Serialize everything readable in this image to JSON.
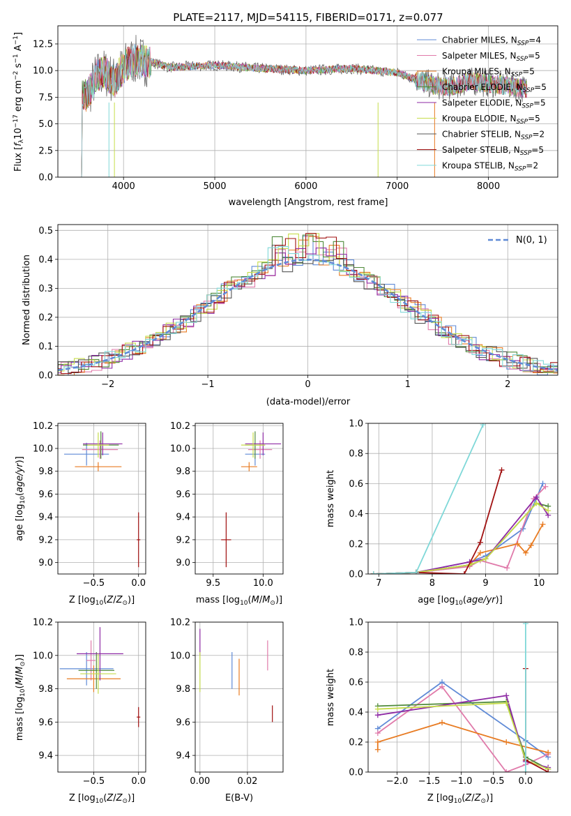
{
  "title": "PLATE=2117, MJD=54115, FIBERID=0171, z=0.077",
  "colors": {
    "Chabrier MILES": "#5f8ad6",
    "Salpeter MILES": "#e87b22",
    "Kroupa MILES": "#4f8a3a",
    "Chabrier ELODIE": "#4f8a3a",
    "Salpeter ELODIE": "#8e2aa5",
    "Kroupa ELODIE": "#c6dc4a",
    "Chabrier STELIB": "#555555",
    "Salpeter STELIB": "#a01010",
    "Kroupa STELIB": "#7fd8d8",
    "pink": "#e07aaa",
    "normal": "#5f8ad6"
  },
  "chart_data": [
    {
      "id": "spectrum",
      "type": "line",
      "title": "PLATE=2117, MJD=54115, FIBERID=0171, z=0.077",
      "xlabel": "wavelength [Angstrom, rest frame]",
      "ylabel": "Flux [f_λ 10^-17 erg cm^-2 s^-1 A^-1]",
      "xlim": [
        3280,
        8760
      ],
      "ylim": [
        0,
        14.2
      ],
      "xticks": [
        "4000",
        "5000",
        "6000",
        "7000",
        "8000"
      ],
      "yticks": [
        "0.0",
        "2.5",
        "5.0",
        "7.5",
        "10.0",
        "12.5"
      ],
      "legend": "top-right",
      "legend_entries": [
        {
          "name": "Chabrier MILES, N_SSP=4",
          "color": "#5f8ad6"
        },
        {
          "name": "Salpeter MILES, N_SSP=5",
          "color": "#e07aaa"
        },
        {
          "name": "Kroupa MILES, N_SSP=5",
          "color": "#e87b22"
        },
        {
          "name": "Chabrier ELODIE, N_SSP=5",
          "color": "#4f8a3a"
        },
        {
          "name": "Salpeter ELODIE, N_SSP=5",
          "color": "#8e2aa5"
        },
        {
          "name": "Kroupa ELODIE, N_SSP=5",
          "color": "#c6dc4a"
        },
        {
          "name": "Chabrier STELIB, N_SSP=2",
          "color": "#555555"
        },
        {
          "name": "Salpeter STELIB, N_SSP=5",
          "color": "#a01010"
        },
        {
          "name": "Kroupa STELIB, N_SSP=2",
          "color": "#7fd8d8"
        }
      ],
      "series_shape": {
        "x": [
          3530,
          3600,
          3700,
          3800,
          3900,
          4000,
          4100,
          4300,
          4500,
          5000,
          5500,
          6000,
          6500,
          7000,
          7200,
          7400,
          7600,
          7800,
          8000,
          8200,
          8400
        ],
        "y": [
          8.0,
          7.5,
          9.5,
          9.8,
          9.0,
          10.3,
          11.0,
          10.8,
          10.3,
          10.5,
          10.2,
          10.0,
          10.2,
          9.8,
          9.2,
          8.6,
          8.5,
          9.0,
          8.8,
          8.6,
          8.3
        ]
      }
    },
    {
      "id": "residuals",
      "type": "line",
      "xlabel": "(data-model)/error",
      "ylabel": "Normed distribution",
      "xlim": [
        -2.5,
        2.5
      ],
      "ylim": [
        0,
        0.52
      ],
      "xticks": [
        "-2",
        "-1",
        "0",
        "1",
        "2"
      ],
      "yticks": [
        "0.0",
        "0.1",
        "0.2",
        "0.3",
        "0.4",
        "0.5"
      ],
      "legend": "top-right",
      "legend_label": "N(0, 1)",
      "series": [
        {
          "name": "Chabrier MILES",
          "color": "#5f8ad6",
          "offset": 0.01
        },
        {
          "name": "Salpeter MILES",
          "color": "#e07aaa",
          "offset": -0.02
        },
        {
          "name": "Kroupa MILES",
          "color": "#e87b22",
          "offset": 0.0
        },
        {
          "name": "Chabrier ELODIE",
          "color": "#4f8a3a",
          "offset": 0.02
        },
        {
          "name": "Salpeter ELODIE",
          "color": "#8e2aa5",
          "offset": -0.01
        },
        {
          "name": "Kroupa ELODIE",
          "color": "#c6dc4a",
          "offset": 0.015
        },
        {
          "name": "Chabrier STELIB",
          "color": "#555555",
          "offset": -0.015
        },
        {
          "name": "Salpeter STELIB",
          "color": "#a01010",
          "offset": 0.005
        },
        {
          "name": "Kroupa STELIB",
          "color": "#7fd8d8",
          "offset": -0.005
        }
      ]
    },
    {
      "id": "age-vs-Z",
      "type": "scatter",
      "xlabel": "Z [log10(Z/Z⊙)]",
      "ylabel": "age [log10(age/yr)]",
      "xlim": [
        -0.9,
        0.08
      ],
      "ylim": [
        8.9,
        10.22
      ],
      "xticks": [
        "-0.5",
        "0.0"
      ],
      "yticks": [
        "9.0",
        "9.2",
        "9.4",
        "9.6",
        "9.8",
        "10.0",
        "10.2"
      ],
      "points": [
        {
          "x": -0.58,
          "y": 9.95,
          "xerr": 0.25,
          "yerr": 0.1,
          "color": "#5f8ad6"
        },
        {
          "x": -0.43,
          "y": 9.99,
          "xerr": 0.2,
          "yerr": 0.08,
          "color": "#e07aaa"
        },
        {
          "x": -0.45,
          "y": 9.84,
          "xerr": 0.26,
          "yerr": 0.04,
          "color": "#e87b22"
        },
        {
          "x": -0.42,
          "y": 10.03,
          "xerr": 0.2,
          "yerr": 0.12,
          "color": "#4f8a3a"
        },
        {
          "x": -0.4,
          "y": 10.04,
          "xerr": 0.22,
          "yerr": 0.1,
          "color": "#8e2aa5"
        },
        {
          "x": -0.45,
          "y": 10.03,
          "xerr": 0.12,
          "yerr": 0.11,
          "color": "#c6dc4a"
        },
        {
          "x": 0.0,
          "y": 9.2,
          "xerr": 0.02,
          "yerr": 0.24,
          "color": "#a01010"
        }
      ]
    },
    {
      "id": "age-vs-mass",
      "type": "scatter",
      "xlabel": "mass [log10(M/M⊙)]",
      "ylabel": "",
      "xlim": [
        9.32,
        10.2
      ],
      "ylim": [
        8.9,
        10.22
      ],
      "xticks": [
        "9.5",
        "10.0"
      ],
      "yticks": [
        "9.0",
        "9.2",
        "9.4",
        "9.6",
        "9.8",
        "10.0",
        "10.2"
      ],
      "points": [
        {
          "x": 9.92,
          "y": 9.95,
          "xerr": 0.1,
          "yerr": 0.1,
          "color": "#5f8ad6"
        },
        {
          "x": 9.97,
          "y": 9.99,
          "xerr": 0.12,
          "yerr": 0.08,
          "color": "#e07aaa"
        },
        {
          "x": 9.86,
          "y": 9.84,
          "xerr": 0.08,
          "yerr": 0.04,
          "color": "#e87b22"
        },
        {
          "x": 9.92,
          "y": 10.03,
          "xerr": 0.1,
          "yerr": 0.12,
          "color": "#4f8a3a"
        },
        {
          "x": 10.0,
          "y": 10.04,
          "xerr": 0.18,
          "yerr": 0.1,
          "color": "#8e2aa5"
        },
        {
          "x": 9.9,
          "y": 10.03,
          "xerr": 0.12,
          "yerr": 0.11,
          "color": "#c6dc4a"
        },
        {
          "x": 9.63,
          "y": 9.2,
          "xerr": 0.05,
          "yerr": 0.24,
          "color": "#a01010"
        }
      ]
    },
    {
      "id": "massweight-vs-age",
      "type": "line",
      "xlabel": "age [log10(age/yr)]",
      "ylabel": "mass weight",
      "xlim": [
        6.8,
        10.35
      ],
      "ylim": [
        0,
        1.0
      ],
      "xticks": [
        "7",
        "8",
        "9",
        "10"
      ],
      "yticks": [
        "0.0",
        "0.2",
        "0.4",
        "0.6",
        "0.8",
        "1.0"
      ],
      "series": [
        {
          "name": "Chabrier MILES",
          "color": "#5f8ad6",
          "x": [
            6.9,
            7.7,
            8.7,
            9.0,
            9.7,
            10.07
          ],
          "y": [
            0.0,
            0.01,
            0.08,
            0.12,
            0.3,
            0.6
          ]
        },
        {
          "name": "Salpeter MILES",
          "color": "#e07aaa",
          "x": [
            6.9,
            7.7,
            8.7,
            8.9,
            9.4,
            9.9,
            10.12
          ],
          "y": [
            0.0,
            0.01,
            0.05,
            0.09,
            0.04,
            0.5,
            0.58
          ]
        },
        {
          "name": "Kroupa MILES",
          "color": "#e87b22",
          "x": [
            6.9,
            7.7,
            8.7,
            8.9,
            9.6,
            9.75,
            9.85,
            10.07
          ],
          "y": [
            0.0,
            0.01,
            0.06,
            0.14,
            0.2,
            0.14,
            0.19,
            0.33
          ]
        },
        {
          "name": "Chabrier ELODIE",
          "color": "#4f8a3a",
          "x": [
            6.9,
            7.7,
            8.7,
            9.0,
            9.95,
            10.17
          ],
          "y": [
            0.0,
            0.01,
            0.06,
            0.1,
            0.47,
            0.45
          ]
        },
        {
          "name": "Salpeter ELODIE",
          "color": "#8e2aa5",
          "x": [
            6.9,
            7.7,
            8.7,
            9.0,
            9.95,
            10.17
          ],
          "y": [
            0.0,
            0.01,
            0.08,
            0.1,
            0.51,
            0.39
          ]
        },
        {
          "name": "Kroupa ELODIE",
          "color": "#c6dc4a",
          "x": [
            6.9,
            7.7,
            8.7,
            9.0,
            9.95,
            10.17
          ],
          "y": [
            0.0,
            0.01,
            0.06,
            0.1,
            0.47,
            0.42
          ]
        },
        {
          "name": "Salpeter STELIB",
          "color": "#a01010",
          "x": [
            6.9,
            7.7,
            8.6,
            8.9,
            9.3
          ],
          "y": [
            0.0,
            0.01,
            0.0,
            0.21,
            0.69
          ]
        },
        {
          "name": "Kroupa STELIB",
          "color": "#7fd8d8",
          "x": [
            6.9,
            7.7,
            8.95
          ],
          "y": [
            0.0,
            0.01,
            0.99
          ]
        }
      ]
    },
    {
      "id": "mass-vs-Z",
      "type": "scatter",
      "xlabel": "Z [log10(Z/Z⊙)]",
      "ylabel": "mass [log10(M/M⊙)]",
      "xlim": [
        -0.9,
        0.08
      ],
      "ylim": [
        9.3,
        10.2
      ],
      "xticks": [
        "-0.5",
        "0.0"
      ],
      "yticks": [
        "9.4",
        "9.6",
        "9.8",
        "10.0",
        "10.2"
      ],
      "points": [
        {
          "x": -0.58,
          "y": 9.92,
          "xerr": 0.3,
          "yerr": 0.1,
          "color": "#5f8ad6"
        },
        {
          "x": -0.53,
          "y": 9.97,
          "xerr": 0.05,
          "yerr": 0.12,
          "color": "#e07aaa"
        },
        {
          "x": -0.5,
          "y": 9.86,
          "xerr": 0.3,
          "yerr": 0.08,
          "color": "#e87b22"
        },
        {
          "x": -0.47,
          "y": 9.91,
          "xerr": 0.2,
          "yerr": 0.11,
          "color": "#4f8a3a"
        },
        {
          "x": -0.43,
          "y": 10.01,
          "xerr": 0.26,
          "yerr": 0.16,
          "color": "#8e2aa5"
        },
        {
          "x": -0.45,
          "y": 9.89,
          "xerr": 0.2,
          "yerr": 0.12,
          "color": "#c6dc4a"
        },
        {
          "x": 0.0,
          "y": 9.63,
          "xerr": 0.02,
          "yerr": 0.06,
          "color": "#a01010"
        }
      ]
    },
    {
      "id": "mass-vs-EBV",
      "type": "scatter",
      "xlabel": "E(B-V)",
      "ylabel": "",
      "xlim": [
        -0.002,
        0.035
      ],
      "ylim": [
        9.3,
        10.2
      ],
      "xticks": [
        "0.00",
        "0.02"
      ],
      "yticks": [
        "9.4",
        "9.6",
        "9.8",
        "10.0",
        "10.2"
      ],
      "points": [
        {
          "x": 0.0,
          "y": 10.08,
          "xerr": 0.0,
          "yerr": 0.08,
          "color": "#8e2aa5"
        },
        {
          "x": 0.0,
          "y": 9.9,
          "xerr": 0.0,
          "yerr": 0.12,
          "color": "#c6dc4a"
        },
        {
          "x": 0.0135,
          "y": 9.91,
          "xerr": 0.0,
          "yerr": 0.11,
          "color": "#5f8ad6"
        },
        {
          "x": 0.0165,
          "y": 9.87,
          "xerr": 0.0,
          "yerr": 0.11,
          "color": "#e87b22"
        },
        {
          "x": 0.0285,
          "y": 10.0,
          "xerr": 0.0,
          "yerr": 0.09,
          "color": "#e07aaa"
        },
        {
          "x": 0.0305,
          "y": 9.65,
          "xerr": 0.0,
          "yerr": 0.05,
          "color": "#a01010"
        }
      ]
    },
    {
      "id": "massweight-vs-Z",
      "type": "line",
      "xlabel": "Z [log10(Z/Z⊙)]",
      "ylabel": "mass weight",
      "xlim": [
        -2.45,
        0.5
      ],
      "ylim": [
        0,
        1.0
      ],
      "xticks": [
        "-2.0",
        "-1.5",
        "-1.0",
        "-0.5",
        "0.0"
      ],
      "yticks": [
        "0.0",
        "0.2",
        "0.4",
        "0.6",
        "0.8",
        "1.0"
      ],
      "series": [
        {
          "name": "Chabrier MILES",
          "color": "#5f8ad6",
          "x": [
            -2.3,
            -1.3,
            0.0,
            0.35
          ],
          "y": [
            0.29,
            0.6,
            0.21,
            0.1
          ]
        },
        {
          "name": "Salpeter MILES",
          "color": "#e07aaa",
          "x": [
            -2.3,
            -1.3,
            -0.3,
            0.0,
            0.35
          ],
          "y": [
            0.26,
            0.57,
            0.0,
            0.05,
            0.12
          ]
        },
        {
          "name": "Kroupa MILES",
          "color": "#e87b22",
          "x": [
            -2.3,
            -2.3,
            -1.3,
            -0.3,
            0.35
          ],
          "y": [
            0.15,
            0.2,
            0.33,
            0.2,
            0.13
          ]
        },
        {
          "name": "Chabrier ELODIE",
          "color": "#4f8a3a",
          "x": [
            -2.3,
            -0.3,
            0.0,
            0.35
          ],
          "y": [
            0.44,
            0.47,
            0.1,
            0.02
          ]
        },
        {
          "name": "Salpeter ELODIE",
          "color": "#8e2aa5",
          "x": [
            -2.3,
            -0.3,
            0.0,
            0.35
          ],
          "y": [
            0.38,
            0.51,
            0.07,
            0.03
          ]
        },
        {
          "name": "Kroupa ELODIE",
          "color": "#c6dc4a",
          "x": [
            -2.3,
            -0.3,
            0.0,
            0.35
          ],
          "y": [
            0.42,
            0.46,
            0.08,
            0.02
          ]
        },
        {
          "name": "Salpeter STELIB",
          "color": "#a01010",
          "x": [
            0.0,
            0.0,
            0.35
          ],
          "y": [
            0.69,
            0.08,
            0.0
          ]
        },
        {
          "name": "Kroupa STELIB",
          "color": "#7fd8d8",
          "x": [
            0.0,
            0.0
          ],
          "y": [
            0.0,
            0.99
          ]
        }
      ]
    }
  ]
}
